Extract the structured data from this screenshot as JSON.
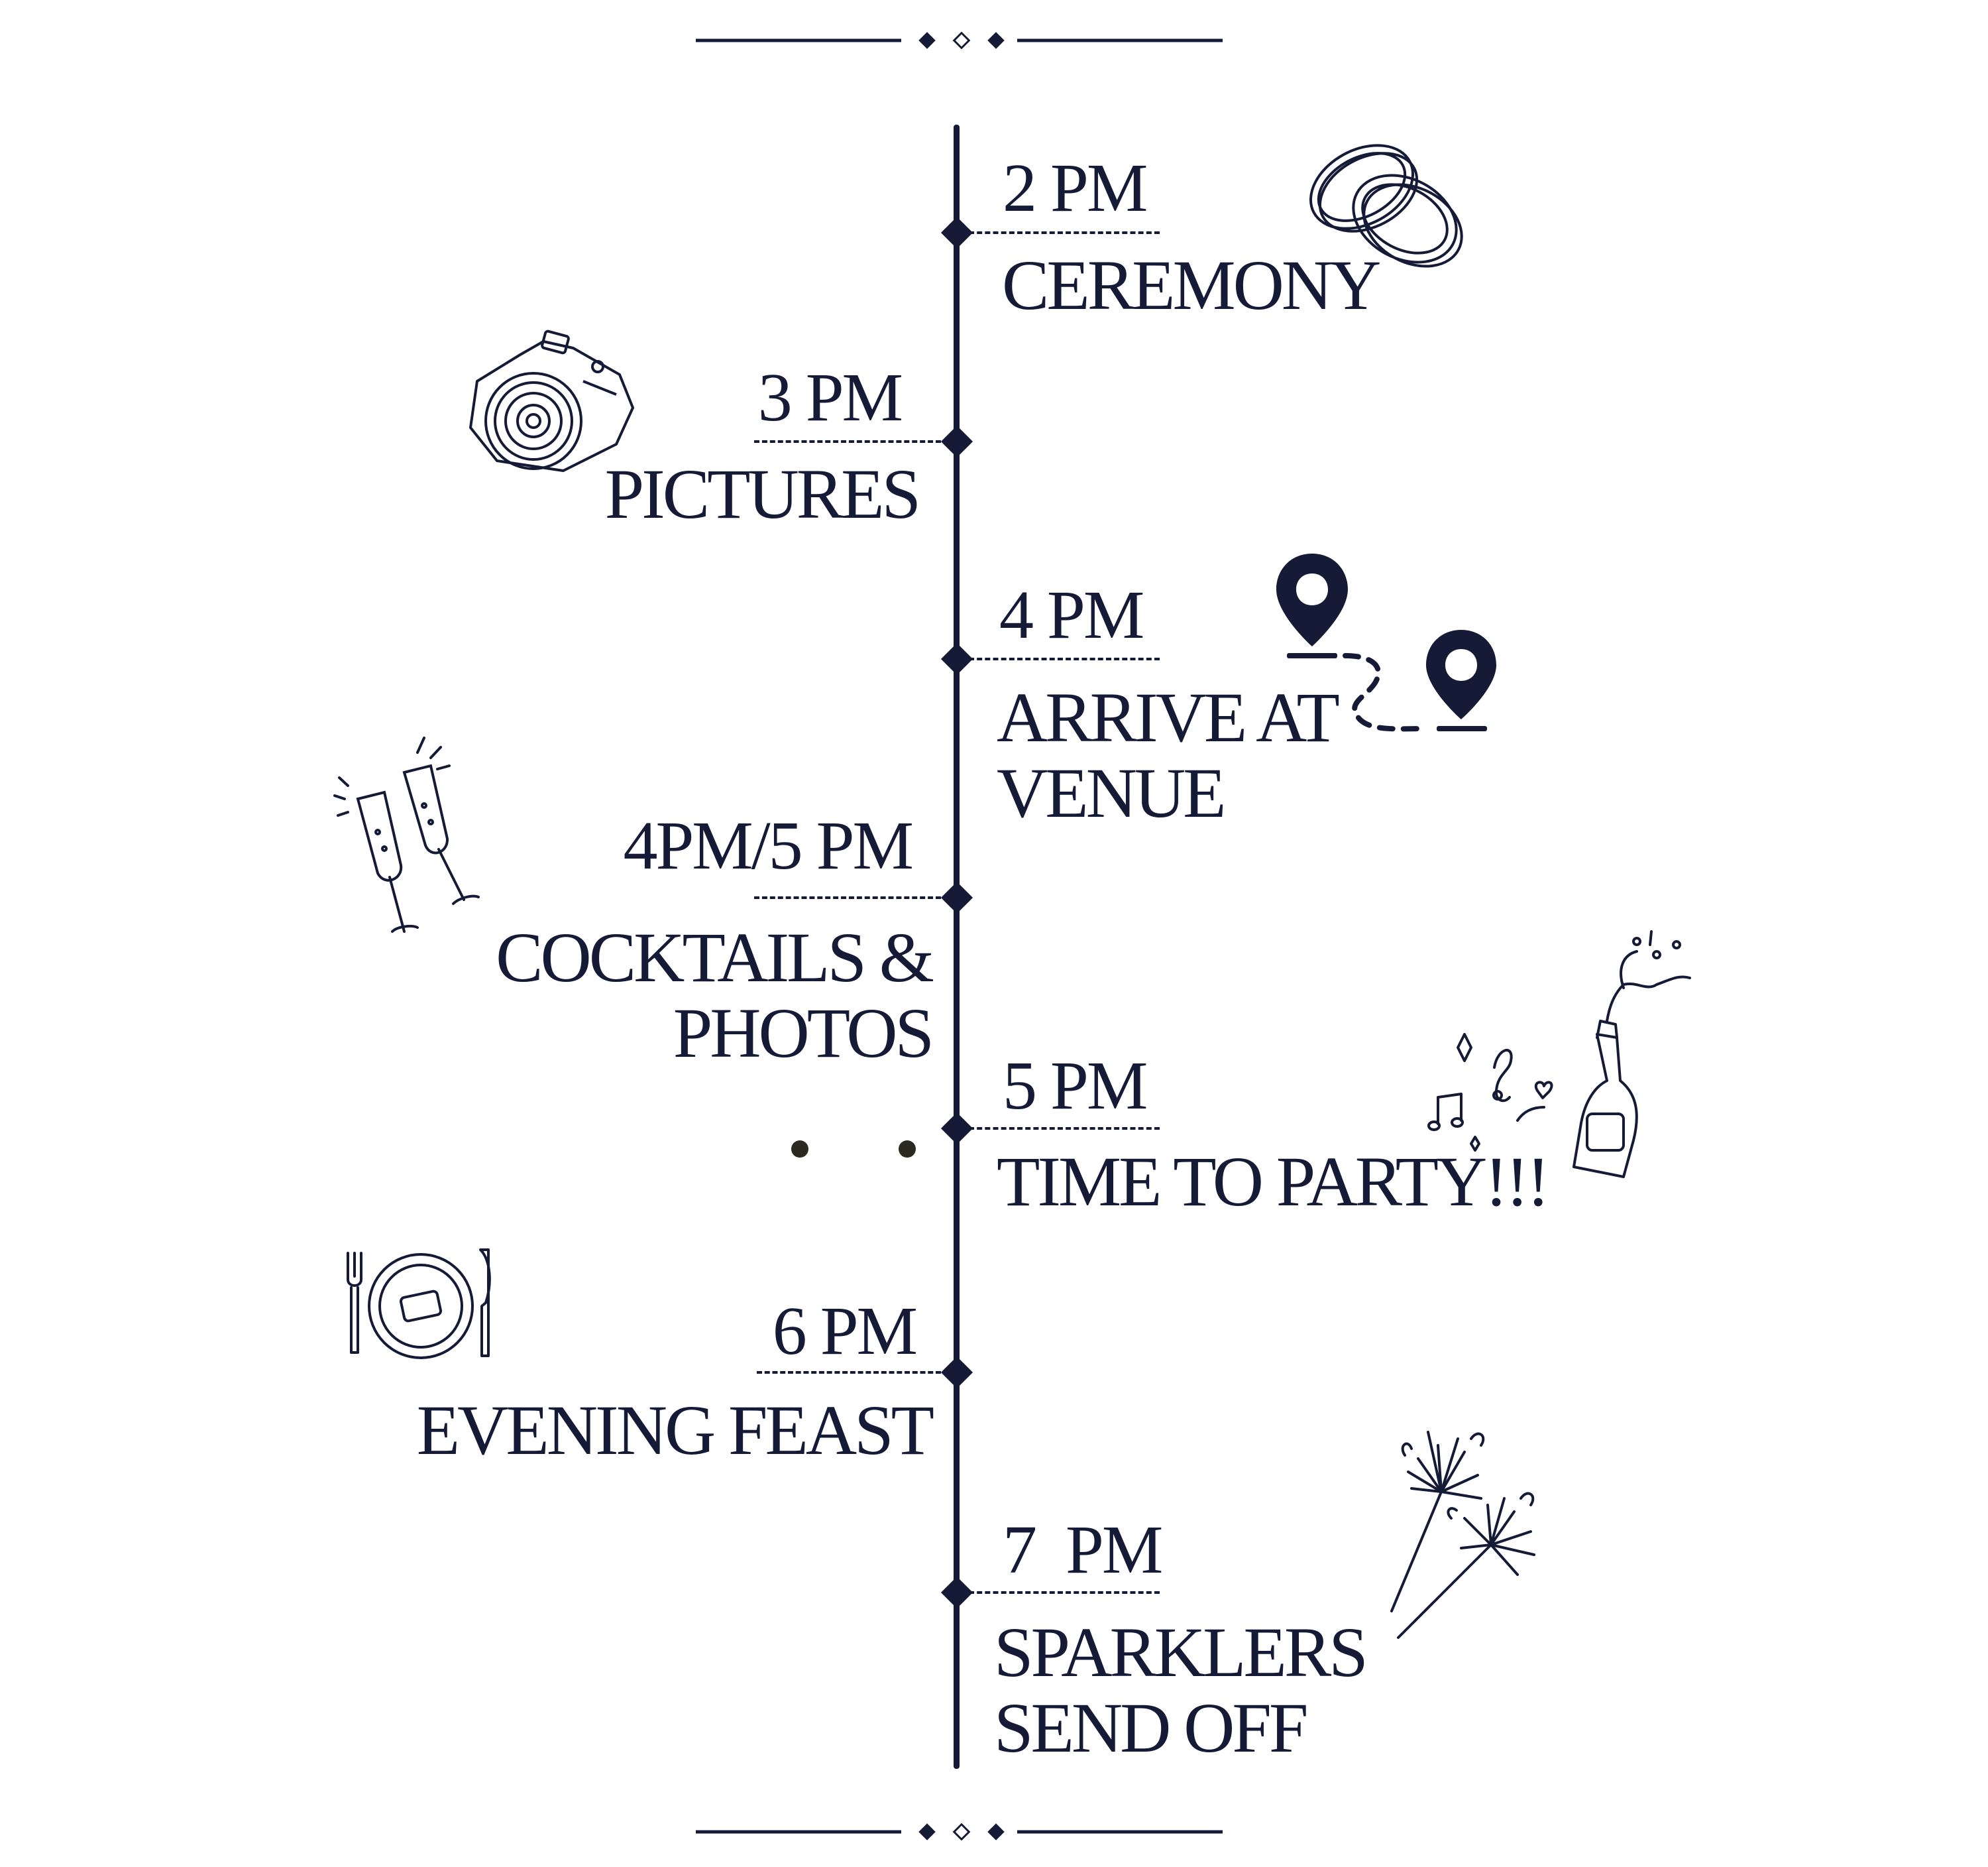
{
  "colors": {
    "ink": "#151a36",
    "background": "#ffffff",
    "dots": "#2a2a20"
  },
  "timeline": [
    {
      "time": "2 PM",
      "label": "CEREMONY",
      "side": "right",
      "icon": "rings-icon"
    },
    {
      "time": "3 PM",
      "label": "PICTURES",
      "side": "left",
      "icon": "camera-icon"
    },
    {
      "time": "4 PM",
      "label": "ARRIVE AT\nVENUE",
      "side": "right",
      "icon": "location-pins-icon"
    },
    {
      "time": "4PM/5 PM",
      "label": "COCKTAILS &\nPHOTOS",
      "side": "left",
      "icon": "champagne-glasses-icon"
    },
    {
      "time": "5 PM",
      "label": "TIME TO PARTY!!!",
      "side": "right",
      "icon": "champagne-bottle-music-icon"
    },
    {
      "time": "6 PM",
      "label": "EVENING FEAST",
      "side": "left",
      "icon": "plate-cutlery-icon"
    },
    {
      "time": "7  PM",
      "label": "SPARKLERS\nSEND OFF",
      "side": "right",
      "icon": "sparklers-icon"
    }
  ],
  "ornaments": {
    "top": "divider-ornament-icon",
    "bottom": "divider-ornament-icon"
  }
}
